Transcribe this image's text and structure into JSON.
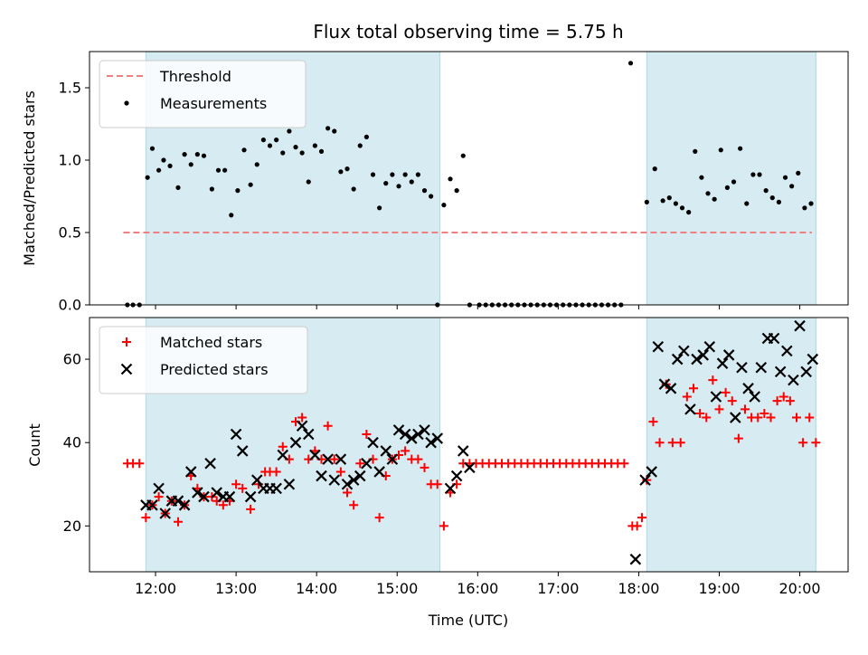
{
  "chart_data": [
    {
      "type": "scatter",
      "title": "Flux total observing time = 5.75 h",
      "xlabel": "",
      "ylabel": "Matched/Predicted stars",
      "xlim": [
        11.18,
        20.6
      ],
      "ylim": [
        0.0,
        1.75
      ],
      "xticks": [
        12,
        13,
        14,
        15,
        16,
        17,
        18,
        19,
        20
      ],
      "yticks": [
        0.0,
        0.5,
        1.0,
        1.5
      ],
      "ytick_labels": [
        "0.0",
        "0.5",
        "1.0",
        "1.5"
      ],
      "legend_position": "top-left",
      "grid": false,
      "shaded_intervals": [
        [
          11.88,
          15.53
        ],
        [
          18.1,
          20.2
        ]
      ],
      "threshold": {
        "name": "Threshold",
        "value": 0.5,
        "x_range": [
          11.6,
          20.15
        ],
        "color": "#f08080",
        "style": "dashed"
      },
      "series": [
        {
          "name": "Measurements",
          "color": "#000000",
          "marker": "dot",
          "x": [
            11.65,
            11.72,
            11.8,
            11.9,
            11.96,
            12.04,
            12.1,
            12.18,
            12.28,
            12.36,
            12.44,
            12.52,
            12.6,
            12.7,
            12.78,
            12.86,
            12.94,
            13.02,
            13.1,
            13.18,
            13.26,
            13.34,
            13.42,
            13.5,
            13.58,
            13.66,
            13.74,
            13.82,
            13.9,
            13.98,
            14.06,
            14.14,
            14.22,
            14.3,
            14.38,
            14.46,
            14.54,
            14.62,
            14.7,
            14.78,
            14.86,
            14.94,
            15.02,
            15.1,
            15.18,
            15.26,
            15.34,
            15.42,
            15.5,
            15.58,
            15.66,
            15.74,
            15.82,
            15.9,
            16.02,
            16.1,
            16.18,
            16.26,
            16.34,
            16.42,
            16.5,
            16.58,
            16.66,
            16.74,
            16.82,
            16.9,
            16.98,
            17.06,
            17.14,
            17.22,
            17.3,
            17.38,
            17.46,
            17.54,
            17.62,
            17.7,
            17.78,
            17.9,
            18.1,
            18.2,
            18.3,
            18.38,
            18.46,
            18.54,
            18.62,
            18.7,
            18.78,
            18.86,
            18.94,
            19.02,
            19.1,
            19.18,
            19.26,
            19.34,
            19.42,
            19.5,
            19.58,
            19.66,
            19.74,
            19.82,
            19.9,
            19.98,
            20.06,
            20.14
          ],
          "y": [
            0,
            0,
            0,
            0.88,
            1.08,
            0.93,
            1.0,
            0.96,
            0.81,
            1.04,
            0.97,
            1.04,
            1.03,
            0.8,
            0.93,
            0.93,
            0.62,
            0.79,
            1.07,
            0.83,
            0.97,
            1.14,
            1.1,
            1.14,
            1.05,
            1.2,
            1.09,
            1.05,
            0.85,
            1.1,
            1.06,
            1.22,
            1.2,
            0.92,
            0.94,
            0.8,
            1.1,
            1.16,
            0.9,
            0.67,
            0.84,
            0.9,
            0.82,
            0.9,
            0.85,
            0.9,
            0.79,
            0.75,
            0,
            0.69,
            0.87,
            0.79,
            1.03,
            0,
            0,
            0,
            0,
            0,
            0,
            0,
            0,
            0,
            0,
            0,
            0,
            0,
            0,
            0,
            0,
            0,
            0,
            0,
            0,
            0,
            0,
            0,
            0,
            1.67,
            0.71,
            0.94,
            0.72,
            0.74,
            0.7,
            0.67,
            0.64,
            1.06,
            0.88,
            0.77,
            0.73,
            1.07,
            0.81,
            0.85,
            1.08,
            0.7,
            0.9,
            0.9,
            0.79,
            0.74,
            0.71,
            0.88,
            0.82,
            0.91,
            0.67,
            0.7
          ]
        }
      ]
    },
    {
      "type": "scatter",
      "title": "",
      "xlabel": "Time (UTC)",
      "ylabel": "Count",
      "xlim": [
        11.18,
        20.6
      ],
      "ylim": [
        9,
        70
      ],
      "xticks": [
        12,
        13,
        14,
        15,
        16,
        17,
        18,
        19,
        20
      ],
      "xtick_labels": [
        "12:00",
        "13:00",
        "14:00",
        "15:00",
        "16:00",
        "17:00",
        "18:00",
        "19:00",
        "20:00"
      ],
      "yticks": [
        20,
        40,
        60
      ],
      "ytick_labels": [
        "20",
        "40",
        "60"
      ],
      "legend_position": "top-left",
      "grid": false,
      "shaded_intervals": [
        [
          11.88,
          15.53
        ],
        [
          18.1,
          20.2
        ]
      ],
      "series": [
        {
          "name": "Matched stars",
          "color": "#ff0000",
          "marker": "plus",
          "x": [
            11.65,
            11.72,
            11.8,
            11.88,
            11.96,
            12.04,
            12.12,
            12.2,
            12.28,
            12.36,
            12.44,
            12.52,
            12.6,
            12.7,
            12.76,
            12.84,
            12.92,
            13.0,
            13.08,
            13.18,
            13.28,
            13.36,
            13.42,
            13.5,
            13.58,
            13.66,
            13.74,
            13.82,
            13.9,
            13.98,
            14.06,
            14.14,
            14.22,
            14.3,
            14.38,
            14.46,
            14.54,
            14.62,
            14.7,
            14.78,
            14.86,
            14.94,
            15.02,
            15.1,
            15.18,
            15.26,
            15.34,
            15.42,
            15.5,
            15.58,
            15.66,
            15.74,
            15.82,
            15.9,
            15.98,
            16.06,
            16.14,
            16.22,
            16.3,
            16.38,
            16.46,
            16.54,
            16.62,
            16.7,
            16.78,
            16.86,
            16.94,
            17.02,
            17.1,
            17.18,
            17.26,
            17.34,
            17.42,
            17.5,
            17.58,
            17.66,
            17.74,
            17.82,
            17.92,
            17.98,
            18.04,
            18.1,
            18.18,
            18.26,
            18.34,
            18.42,
            18.52,
            18.6,
            18.68,
            18.76,
            18.84,
            18.92,
            19.0,
            19.08,
            19.16,
            19.24,
            19.32,
            19.4,
            19.48,
            19.56,
            19.64,
            19.72,
            19.8,
            19.88,
            19.96,
            20.04,
            20.12,
            20.2
          ],
          "y": [
            35,
            35,
            35,
            22,
            25,
            27,
            23,
            26,
            21,
            25,
            32,
            29,
            27,
            27,
            26,
            25,
            26,
            30,
            29,
            24,
            30,
            33,
            33,
            33,
            39,
            36,
            45,
            46,
            36,
            38,
            36,
            44,
            36,
            33,
            28,
            25,
            35,
            42,
            36,
            22,
            32,
            36,
            37,
            38,
            36,
            36,
            34,
            30,
            30,
            20,
            28,
            30,
            35,
            35,
            35,
            35,
            35,
            35,
            35,
            35,
            35,
            35,
            35,
            35,
            35,
            35,
            35,
            35,
            35,
            35,
            35,
            35,
            35,
            35,
            35,
            35,
            35,
            35,
            20,
            20,
            22,
            31,
            45,
            40,
            54,
            40,
            40,
            51,
            53,
            47,
            46,
            55,
            48,
            52,
            50,
            41,
            48,
            46,
            46,
            47,
            46,
            50,
            51,
            50,
            46,
            40,
            46,
            40
          ]
        },
        {
          "name": "Predicted stars",
          "color": "#000000",
          "marker": "x",
          "x": [
            11.88,
            11.96,
            12.04,
            12.12,
            12.2,
            12.28,
            12.36,
            12.44,
            12.52,
            12.6,
            12.68,
            12.76,
            12.84,
            12.92,
            13.0,
            13.08,
            13.18,
            13.26,
            13.34,
            13.42,
            13.5,
            13.58,
            13.66,
            13.74,
            13.82,
            13.9,
            13.98,
            14.06,
            14.14,
            14.22,
            14.3,
            14.38,
            14.46,
            14.54,
            14.62,
            14.7,
            14.78,
            14.86,
            14.94,
            15.02,
            15.1,
            15.18,
            15.26,
            15.34,
            15.42,
            15.5,
            15.66,
            15.74,
            15.82,
            15.9,
            17.96,
            18.08,
            18.16,
            18.24,
            18.32,
            18.4,
            18.48,
            18.56,
            18.64,
            18.72,
            18.8,
            18.88,
            18.96,
            19.04,
            19.12,
            19.2,
            19.28,
            19.36,
            19.44,
            19.52,
            19.6,
            19.68,
            19.76,
            19.84,
            19.92,
            20.0,
            20.08,
            20.16
          ],
          "y": [
            25,
            25,
            29,
            23,
            26,
            26,
            25,
            33,
            28,
            27,
            35,
            28,
            27,
            27,
            42,
            38,
            27,
            31,
            29,
            29,
            29,
            37,
            30,
            40,
            44,
            42,
            37,
            32,
            36,
            31,
            36,
            30,
            31,
            32,
            35,
            40,
            33,
            38,
            36,
            43,
            42,
            41,
            42,
            43,
            40,
            41,
            29,
            32,
            38,
            34,
            12,
            31,
            33,
            63,
            54,
            53,
            60,
            62,
            48,
            60,
            61,
            63,
            51,
            59,
            61,
            46,
            58,
            53,
            51,
            58,
            65,
            65,
            57,
            62,
            55,
            68,
            57,
            60
          ]
        }
      ]
    }
  ]
}
